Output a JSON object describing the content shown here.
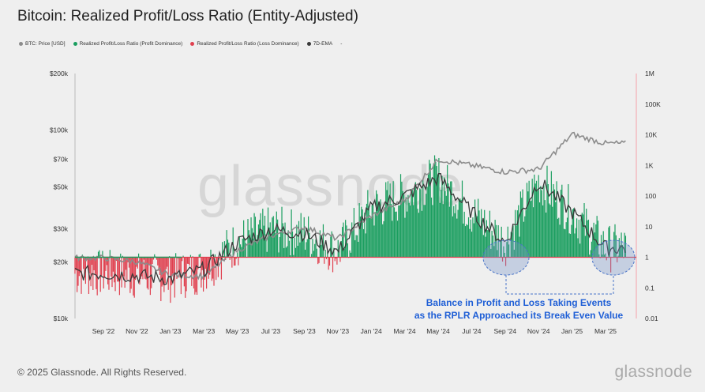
{
  "header": {
    "title": "Bitcoin: Realized Profit/Loss Ratio (Entity-Adjusted)"
  },
  "legend": [
    {
      "label": "BTC: Price [USD]",
      "color": "#8c8c8c"
    },
    {
      "label": "Realized Profit/Loss Ratio (Profit Dominance)",
      "color": "#1a9e5f"
    },
    {
      "label": "Realized Profit/Loss Ratio (Loss Dominance)",
      "color": "#e0404f"
    },
    {
      "label": "7D-EMA",
      "color": "#3a3a3a"
    },
    {
      "label": "-",
      "color": ""
    }
  ],
  "watermark": "glassnode",
  "footer": {
    "copyright": "© 2025 Glassnode. All Rights Reserved.",
    "brand": "glassnode"
  },
  "annotation": {
    "line1": "Balance in Profit and Loss Taking Events",
    "line2": "as the RPLR Approached its Break Even Value"
  },
  "chart_data": {
    "type": "line",
    "x_ticks": [
      "Sep '22",
      "Nov '22",
      "Jan '23",
      "Mar '23",
      "May '23",
      "Jul '23",
      "Sep '23",
      "Nov '23",
      "Jan '24",
      "Mar '24",
      "May '24",
      "Jul '24",
      "Sep '24",
      "Nov '24",
      "Jan '25",
      "Mar '25"
    ],
    "left_axis": {
      "scale": "log",
      "ticks": [
        "$200k",
        "$100k",
        "$70k",
        "$50k",
        "$30k",
        "$20k",
        "$10k"
      ],
      "tick_values": [
        200000,
        100000,
        70000,
        50000,
        30000,
        20000,
        10000
      ]
    },
    "right_axis": {
      "scale": "log",
      "ticks": [
        "1M",
        "100K",
        "10K",
        "1K",
        "100",
        "10",
        "1",
        "0.1",
        "0.01"
      ],
      "tick_values": [
        1000000,
        100000,
        10000,
        1000,
        100,
        10,
        1,
        0.1,
        0.01
      ]
    },
    "threshold": 1,
    "series": [
      {
        "name": "BTC: Price [USD]",
        "axis": "left",
        "x": [
          0,
          1,
          2,
          3,
          4,
          5,
          6,
          7,
          8,
          9,
          10,
          11,
          12,
          13,
          14,
          15
        ],
        "values": [
          21000,
          20000,
          17000,
          16800,
          23000,
          27500,
          30500,
          26500,
          35000,
          42500,
          70000,
          65000,
          60000,
          62000,
          95000,
          85000
        ]
      },
      {
        "name": "7D-EMA",
        "axis": "right",
        "x": [
          0,
          1,
          2,
          3,
          4,
          5,
          6,
          7,
          8,
          9,
          10,
          11,
          12,
          13,
          14,
          15
        ],
        "values": [
          0.3,
          0.25,
          0.2,
          0.4,
          3,
          8,
          6,
          1.5,
          40,
          100,
          400,
          30,
          3,
          300,
          30,
          2
        ]
      }
    ]
  }
}
